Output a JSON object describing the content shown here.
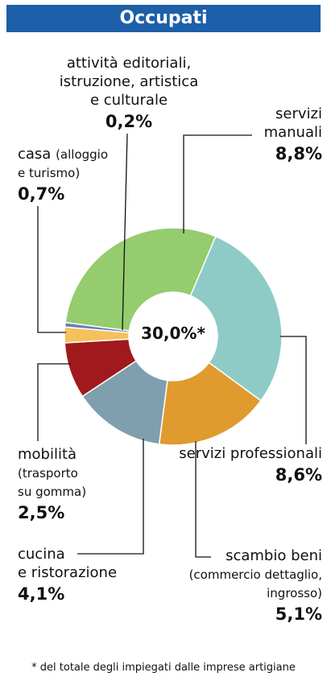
{
  "chart_data": {
    "type": "donut",
    "title": "Occupati",
    "categories": [
      "servizi professionali",
      "scambio beni",
      "cucina\ne ristorazione",
      "mobilità",
      "casa",
      "attività editoriali,\nistruzione, artistica\ne culturale",
      "servizi\nmanuali"
    ],
    "details": [
      null,
      "(commercio dettaglio,\ningrosso)",
      null,
      "(trasporto\nsu gomma)",
      "(alloggio\ne turismo)",
      null,
      null
    ],
    "values": [
      8.6,
      5.1,
      4.1,
      2.5,
      0.7,
      0.2,
      8.8
    ],
    "value_labels": [
      "8,6%",
      "5,1%",
      "4,1%",
      "2,5%",
      "0,7%",
      "0,2%",
      "8,8%"
    ],
    "colors": [
      "#8ecbc6",
      "#e09a2e",
      "#7f9fae",
      "#a0191c",
      "#f5c15a",
      "#6b7fb8",
      "#94cc6e"
    ],
    "total_label": "30,0%*",
    "footnote": "* del totale degli impiegati dalle imprese artigiane"
  }
}
